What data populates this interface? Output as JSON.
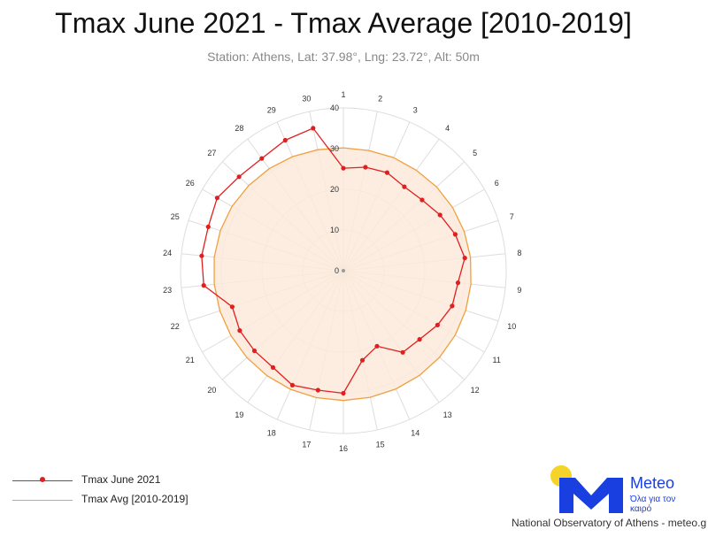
{
  "header": {
    "title": "Tmax June 2021 - Tmax Average [2010-2019]",
    "subtitle": "Station: Athens, Lat: 37.98°, Lng: 23.72°, Alt: 50m"
  },
  "chart_data": {
    "type": "radar",
    "categories": [
      "1",
      "2",
      "3",
      "4",
      "5",
      "6",
      "7",
      "8",
      "9",
      "10",
      "11",
      "12",
      "13",
      "14",
      "15",
      "16",
      "17",
      "18",
      "19",
      "20",
      "21",
      "22",
      "23",
      "24",
      "25",
      "26",
      "27",
      "28",
      "29",
      "30"
    ],
    "radial_ticks": [
      "0",
      "10",
      "20",
      "30",
      "40"
    ],
    "rlim": [
      0,
      40
    ],
    "grid": true,
    "legend_position": "bottom-left",
    "series": [
      {
        "name": "Tmax June 2021",
        "color": "#e02020",
        "markers": true,
        "values": [
          25.2,
          26.0,
          26.4,
          25.5,
          26.0,
          27.4,
          28.9,
          30.0,
          28.3,
          28.1,
          26.7,
          25.2,
          24.8,
          20.3,
          22.5,
          30.1,
          30.0,
          30.8,
          29.4,
          29.4,
          29.4,
          28.7,
          34.5,
          35.0,
          34.9,
          35.8,
          34.5,
          34.1,
          35.1,
          35.8
        ]
      },
      {
        "name": "Tmax Avg [2010-2019]",
        "color": "#f0a040",
        "fill": "#fdeadb",
        "markers": false,
        "values": [
          30.2,
          30.2,
          30.4,
          30.5,
          30.8,
          31.0,
          31.2,
          31.4,
          31.5,
          31.6,
          31.7,
          31.8,
          31.8,
          31.8,
          31.8,
          31.9,
          31.9,
          31.9,
          31.9,
          31.9,
          31.9,
          31.9,
          31.9,
          31.9,
          31.8,
          31.6,
          31.3,
          31.0,
          30.7,
          30.4
        ]
      }
    ]
  },
  "legend": {
    "items": [
      {
        "label": "Tmax June 2021",
        "color": "#e02020"
      },
      {
        "label": "Tmax Avg [2010-2019]",
        "color": "#f0a040"
      }
    ]
  },
  "logo": {
    "word": "Meteo",
    "tagline": "Όλα για τον καιρό",
    "sun_color": "#f5d327",
    "brand_color": "#1a3fe0"
  },
  "footer": {
    "text": "National Observatory of Athens - meteo.g"
  }
}
